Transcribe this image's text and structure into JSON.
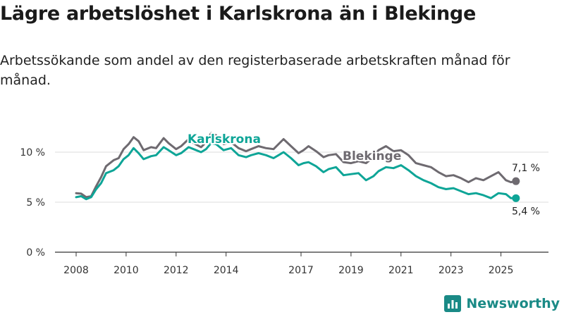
{
  "title": "Lägre arbetslöshet i Karlskrona än i Blekinge",
  "subtitle": "Arbetssökande som andel av den registerbaserade arbetskraften månad för månad.",
  "brand": {
    "name": "Newsworthy",
    "icon": "newsworthy-logo-icon"
  },
  "colors": {
    "karlskrona": "#0ea597",
    "blekinge": "#6e6a70",
    "grid": "#dddddd",
    "axis": "#333333"
  },
  "chart_data": {
    "type": "line",
    "xlim": [
      2008,
      2026
    ],
    "ylim": [
      0,
      10.5
    ],
    "y_ticks": [
      {
        "value": 0,
        "label": "0 %"
      },
      {
        "value": 5,
        "label": "5 %"
      },
      {
        "value": 10,
        "label": "10 %"
      }
    ],
    "x_ticks": [
      {
        "value": 2008,
        "label": "2008"
      },
      {
        "value": 2010,
        "label": "2010"
      },
      {
        "value": 2012,
        "label": "2012"
      },
      {
        "value": 2014,
        "label": "2014"
      },
      {
        "value": 2017,
        "label": "2017"
      },
      {
        "value": 2019,
        "label": "2019"
      },
      {
        "value": 2021,
        "label": "2021"
      },
      {
        "value": 2023,
        "label": "2023"
      },
      {
        "value": 2025,
        "label": "2025"
      }
    ],
    "series": [
      {
        "name": "Blekinge",
        "label": "Blekinge",
        "end_label": "7,1 %",
        "color": "#6e6a70",
        "points": [
          [
            2008,
            5.9
          ],
          [
            2008.2,
            5.85
          ],
          [
            2008.4,
            5.5
          ],
          [
            2008.6,
            5.6
          ],
          [
            2008.8,
            6.6
          ],
          [
            2009,
            7.5
          ],
          [
            2009.2,
            8.6
          ],
          [
            2009.5,
            9.2
          ],
          [
            2009.7,
            9.4
          ],
          [
            2009.9,
            10.3
          ],
          [
            2010.1,
            10.8
          ],
          [
            2010.3,
            11.5
          ],
          [
            2010.5,
            11.1
          ],
          [
            2010.7,
            10.2
          ],
          [
            2011,
            10.5
          ],
          [
            2011.2,
            10.4
          ],
          [
            2011.5,
            11.4
          ],
          [
            2011.7,
            10.9
          ],
          [
            2012,
            10.3
          ],
          [
            2012.2,
            10.6
          ],
          [
            2012.5,
            11.3
          ],
          [
            2012.7,
            10.9
          ],
          [
            2013,
            10.5
          ],
          [
            2013.2,
            11.0
          ],
          [
            2013.4,
            11.9
          ],
          [
            2013.6,
            11.7
          ],
          [
            2013.9,
            10.8
          ],
          [
            2014.2,
            11.0
          ],
          [
            2014.5,
            10.4
          ],
          [
            2014.8,
            10.1
          ],
          [
            2015,
            10.3
          ],
          [
            2015.3,
            10.6
          ],
          [
            2015.6,
            10.4
          ],
          [
            2015.9,
            10.3
          ],
          [
            2016.1,
            10.8
          ],
          [
            2016.3,
            11.3
          ],
          [
            2016.6,
            10.6
          ],
          [
            2016.9,
            9.9
          ],
          [
            2017.1,
            10.2
          ],
          [
            2017.3,
            10.6
          ],
          [
            2017.6,
            10.1
          ],
          [
            2017.9,
            9.5
          ],
          [
            2018.1,
            9.7
          ],
          [
            2018.4,
            9.8
          ],
          [
            2018.7,
            9.0
          ],
          [
            2019,
            8.9
          ],
          [
            2019.3,
            9.1
          ],
          [
            2019.6,
            8.9
          ],
          [
            2019.9,
            9.5
          ],
          [
            2020.1,
            10.2
          ],
          [
            2020.4,
            10.6
          ],
          [
            2020.7,
            10.1
          ],
          [
            2021,
            10.2
          ],
          [
            2021.3,
            9.7
          ],
          [
            2021.6,
            8.9
          ],
          [
            2021.9,
            8.7
          ],
          [
            2022.2,
            8.5
          ],
          [
            2022.5,
            8.0
          ],
          [
            2022.8,
            7.6
          ],
          [
            2023.1,
            7.7
          ],
          [
            2023.4,
            7.4
          ],
          [
            2023.7,
            7.0
          ],
          [
            2024,
            7.4
          ],
          [
            2024.3,
            7.2
          ],
          [
            2024.6,
            7.6
          ],
          [
            2024.9,
            8.0
          ],
          [
            2025.2,
            7.2
          ],
          [
            2025.4,
            7.0
          ],
          [
            2025.6,
            7.1
          ]
        ]
      },
      {
        "name": "Karlskrona",
        "label": "Karlskrona",
        "end_label": "5,4 %",
        "color": "#0ea597",
        "points": [
          [
            2008,
            5.5
          ],
          [
            2008.2,
            5.6
          ],
          [
            2008.4,
            5.3
          ],
          [
            2008.6,
            5.5
          ],
          [
            2008.8,
            6.3
          ],
          [
            2009,
            6.9
          ],
          [
            2009.2,
            7.9
          ],
          [
            2009.5,
            8.2
          ],
          [
            2009.7,
            8.6
          ],
          [
            2009.9,
            9.3
          ],
          [
            2010.1,
            9.7
          ],
          [
            2010.3,
            10.4
          ],
          [
            2010.5,
            9.9
          ],
          [
            2010.7,
            9.3
          ],
          [
            2011,
            9.6
          ],
          [
            2011.2,
            9.7
          ],
          [
            2011.5,
            10.5
          ],
          [
            2011.7,
            10.2
          ],
          [
            2012,
            9.7
          ],
          [
            2012.2,
            9.9
          ],
          [
            2012.5,
            10.5
          ],
          [
            2012.7,
            10.3
          ],
          [
            2013,
            10.0
          ],
          [
            2013.2,
            10.3
          ],
          [
            2013.4,
            10.9
          ],
          [
            2013.6,
            10.8
          ],
          [
            2013.9,
            10.2
          ],
          [
            2014.2,
            10.4
          ],
          [
            2014.5,
            9.7
          ],
          [
            2014.8,
            9.5
          ],
          [
            2015,
            9.7
          ],
          [
            2015.3,
            9.9
          ],
          [
            2015.6,
            9.7
          ],
          [
            2015.9,
            9.4
          ],
          [
            2016.1,
            9.7
          ],
          [
            2016.3,
            10.0
          ],
          [
            2016.6,
            9.4
          ],
          [
            2016.9,
            8.7
          ],
          [
            2017.1,
            8.9
          ],
          [
            2017.3,
            9.0
          ],
          [
            2017.6,
            8.6
          ],
          [
            2017.9,
            8.0
          ],
          [
            2018.1,
            8.3
          ],
          [
            2018.4,
            8.5
          ],
          [
            2018.7,
            7.7
          ],
          [
            2019,
            7.8
          ],
          [
            2019.3,
            7.9
          ],
          [
            2019.6,
            7.2
          ],
          [
            2019.9,
            7.6
          ],
          [
            2020.1,
            8.1
          ],
          [
            2020.4,
            8.5
          ],
          [
            2020.7,
            8.4
          ],
          [
            2021,
            8.7
          ],
          [
            2021.3,
            8.2
          ],
          [
            2021.6,
            7.6
          ],
          [
            2021.9,
            7.2
          ],
          [
            2022.2,
            6.9
          ],
          [
            2022.5,
            6.5
          ],
          [
            2022.8,
            6.3
          ],
          [
            2023.1,
            6.4
          ],
          [
            2023.4,
            6.1
          ],
          [
            2023.7,
            5.8
          ],
          [
            2024,
            5.9
          ],
          [
            2024.3,
            5.7
          ],
          [
            2024.6,
            5.4
          ],
          [
            2024.9,
            5.9
          ],
          [
            2025.2,
            5.8
          ],
          [
            2025.4,
            5.4
          ],
          [
            2025.6,
            5.4
          ]
        ]
      }
    ]
  }
}
